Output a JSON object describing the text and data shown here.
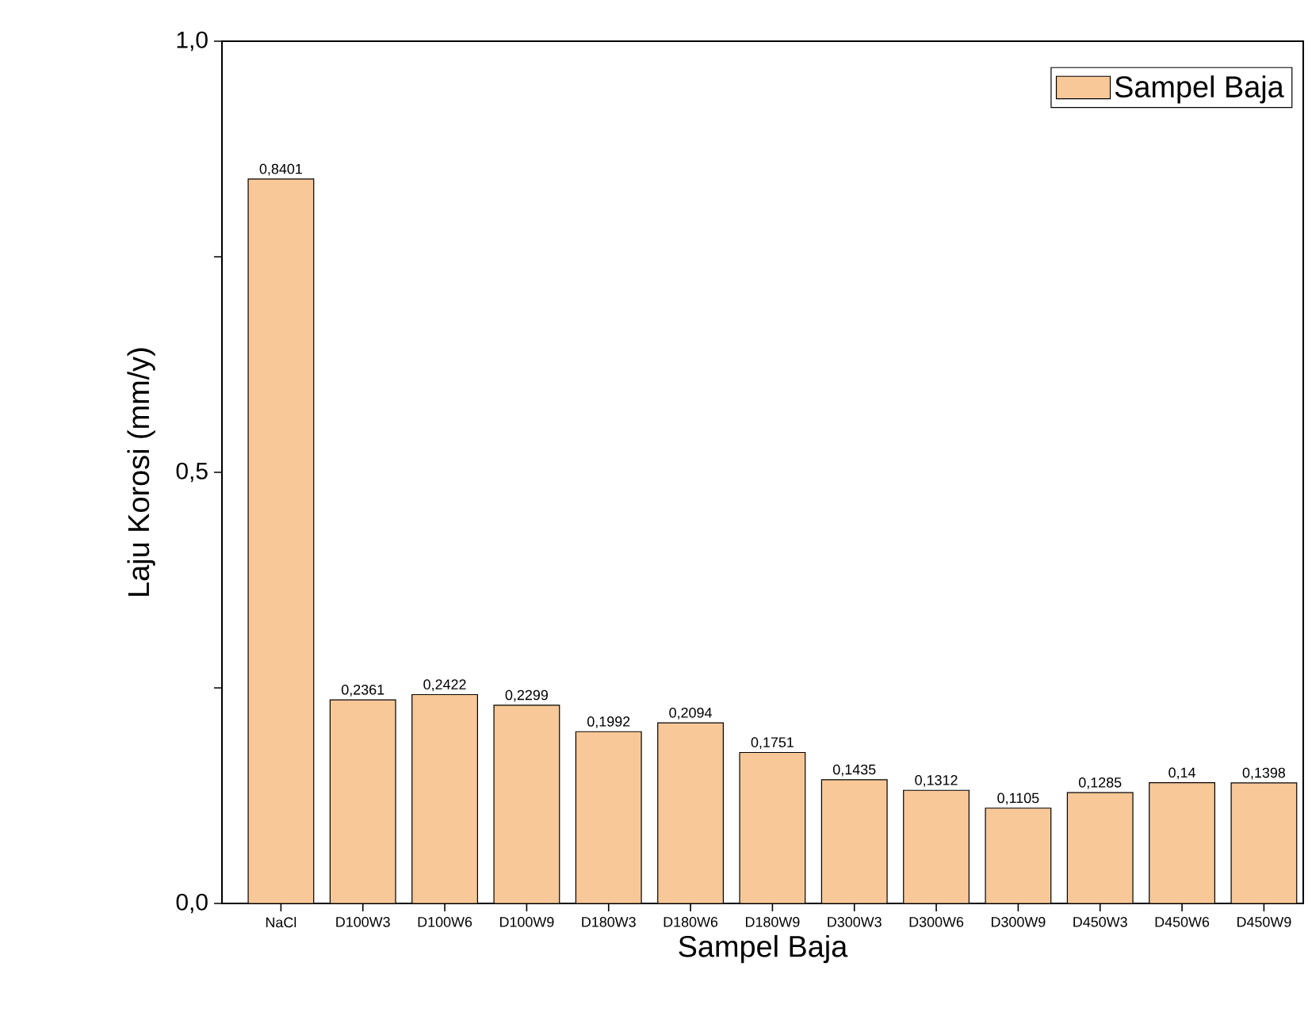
{
  "chart_data": {
    "type": "bar",
    "xlabel": "Sampel Baja",
    "ylabel": "Laju Korosi (mm/y)",
    "categories": [
      "NaCl",
      "D100W3",
      "D100W6",
      "D100W9",
      "D180W3",
      "D180W6",
      "D180W9",
      "D300W3",
      "D300W6",
      "D300W9",
      "D450W3",
      "D450W6",
      "D450W9"
    ],
    "series": [
      {
        "name": "Sampel Baja",
        "color": "#f9c898",
        "values": [
          0.8401,
          0.2361,
          0.2422,
          0.2299,
          0.1992,
          0.2094,
          0.1751,
          0.1435,
          0.1312,
          0.1105,
          0.1285,
          0.14,
          0.1398
        ],
        "value_labels": [
          "0,8401",
          "0,2361",
          "0,2422",
          "0,2299",
          "0,1992",
          "0,2094",
          "0,1751",
          "0,1435",
          "0,1312",
          "0,1105",
          "0,1285",
          "0,14",
          "0,1398"
        ]
      }
    ],
    "ylim": [
      0,
      1
    ],
    "yticks": [
      {
        "value": 0,
        "label": "0,0"
      },
      {
        "value": 0.25,
        "label": null
      },
      {
        "value": 0.5,
        "label": "0,5"
      },
      {
        "value": 0.75,
        "label": null
      },
      {
        "value": 1,
        "label": "1,0"
      }
    ],
    "grid": false,
    "legend": "top right"
  }
}
